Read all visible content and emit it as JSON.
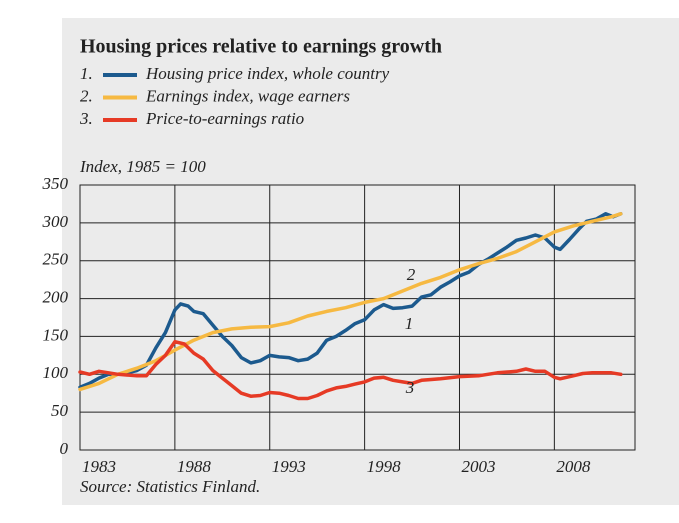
{
  "chart_data": {
    "type": "line",
    "title": "Housing prices relative to earnings growth",
    "y_label": "Index, 1985 = 100",
    "source": "Source: Statistics Finland.",
    "annotations": [
      "2",
      "1",
      "3"
    ],
    "xlim": [
      1983,
      2012.25
    ],
    "xticks": [
      1983,
      1988,
      1993,
      1998,
      2003,
      2008
    ],
    "ylim": [
      0,
      350
    ],
    "yticks": [
      0,
      50,
      100,
      150,
      200,
      250,
      300,
      350
    ],
    "grid": true,
    "series": [
      {
        "number": "1.",
        "name": "Housing price index, whole country",
        "color": "#1c5a8e",
        "x": [
          1983,
          1983.5,
          1984,
          1984.5,
          1985,
          1985.5,
          1986,
          1986.5,
          1987,
          1987.5,
          1988,
          1988.3,
          1988.7,
          1989,
          1989.5,
          1990,
          1990.5,
          1991,
          1991.5,
          1992,
          1992.5,
          1993,
          1993.5,
          1994,
          1994.5,
          1995,
          1995.5,
          1996,
          1996.5,
          1997,
          1997.5,
          1998,
          1998.5,
          1999,
          1999.5,
          2000,
          2000.5,
          2001,
          2001.5,
          2002,
          2002.5,
          2003,
          2003.5,
          2004,
          2004.5,
          2005,
          2005.5,
          2006,
          2006.5,
          2007,
          2007.5,
          2008,
          2008.3,
          2008.8,
          2009.3,
          2009.7,
          2010.2,
          2010.7,
          2011.1,
          2011.5
        ],
        "values": [
          83,
          88,
          95,
          100,
          100,
          102,
          105,
          112,
          135,
          155,
          185,
          193,
          190,
          183,
          180,
          165,
          150,
          138,
          122,
          115,
          118,
          125,
          123,
          122,
          118,
          120,
          128,
          145,
          150,
          158,
          167,
          172,
          185,
          192,
          187,
          188,
          190,
          202,
          205,
          215,
          222,
          230,
          235,
          245,
          252,
          260,
          268,
          277,
          280,
          284,
          280,
          268,
          265,
          278,
          292,
          302,
          305,
          312,
          308,
          312
        ]
      },
      {
        "number": "2.",
        "name": "Earnings index, wage earners",
        "color": "#f6b942",
        "x": [
          1983,
          1984,
          1985,
          1986,
          1987,
          1988,
          1989,
          1990,
          1991,
          1992,
          1993,
          1994,
          1995,
          1996,
          1997,
          1998,
          1999,
          2000,
          2001,
          2002,
          2003,
          2004,
          2005,
          2006,
          2007,
          2008,
          2009,
          2010,
          2011,
          2011.5
        ],
        "values": [
          80,
          88,
          100,
          108,
          118,
          132,
          145,
          155,
          160,
          162,
          163,
          168,
          177,
          183,
          188,
          195,
          200,
          210,
          220,
          228,
          238,
          246,
          253,
          262,
          275,
          288,
          296,
          302,
          308,
          312
        ]
      },
      {
        "number": "3.",
        "name": "Price-to-earnings ratio",
        "color": "#e63a25",
        "x": [
          1983,
          1983.5,
          1984,
          1985,
          1986,
          1986.5,
          1987,
          1987.5,
          1988,
          1988.5,
          1989,
          1989.5,
          1990,
          1990.5,
          1991,
          1991.5,
          1992,
          1992.5,
          1993,
          1993.5,
          1994,
          1994.5,
          1995,
          1995.5,
          1996,
          1996.5,
          1997,
          1997.5,
          1998,
          1998.5,
          1999,
          1999.5,
          2000,
          2000.5,
          2001,
          2002,
          2003,
          2004,
          2005,
          2006,
          2006.5,
          2007,
          2007.5,
          2008,
          2008.3,
          2009,
          2009.5,
          2010,
          2011,
          2011.5
        ],
        "values": [
          103,
          100,
          104,
          100,
          98,
          98,
          113,
          125,
          143,
          140,
          128,
          120,
          105,
          95,
          85,
          75,
          71,
          72,
          76,
          75,
          72,
          68,
          68,
          72,
          78,
          82,
          84,
          87,
          90,
          95,
          96,
          92,
          90,
          88,
          92,
          94,
          97,
          98,
          102,
          104,
          107,
          104,
          104,
          96,
          94,
          98,
          101,
          102,
          102,
          100
        ]
      }
    ]
  }
}
